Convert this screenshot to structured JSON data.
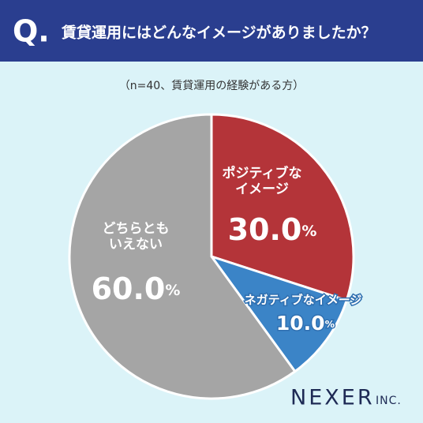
{
  "header": {
    "mark": "Q.",
    "title": "賃貸運用にはどんなイメージがありましたか？"
  },
  "chart_data": {
    "type": "pie",
    "subtitle": "（n=40、賃貸運用の経験がある方）",
    "categories": [
      "ポジティブな\nイメージ",
      "ネガティブなイメージ",
      "どちらとも\nいえない"
    ],
    "values": [
      30,
      10,
      60
    ],
    "value_labels": [
      "30.0%",
      "10.0%",
      "60.0%"
    ],
    "colors": [
      "#b43439",
      "#3b84c7",
      "#a5a5a5"
    ]
  },
  "brand": {
    "name": "NEXER",
    "suffix": "INC."
  }
}
